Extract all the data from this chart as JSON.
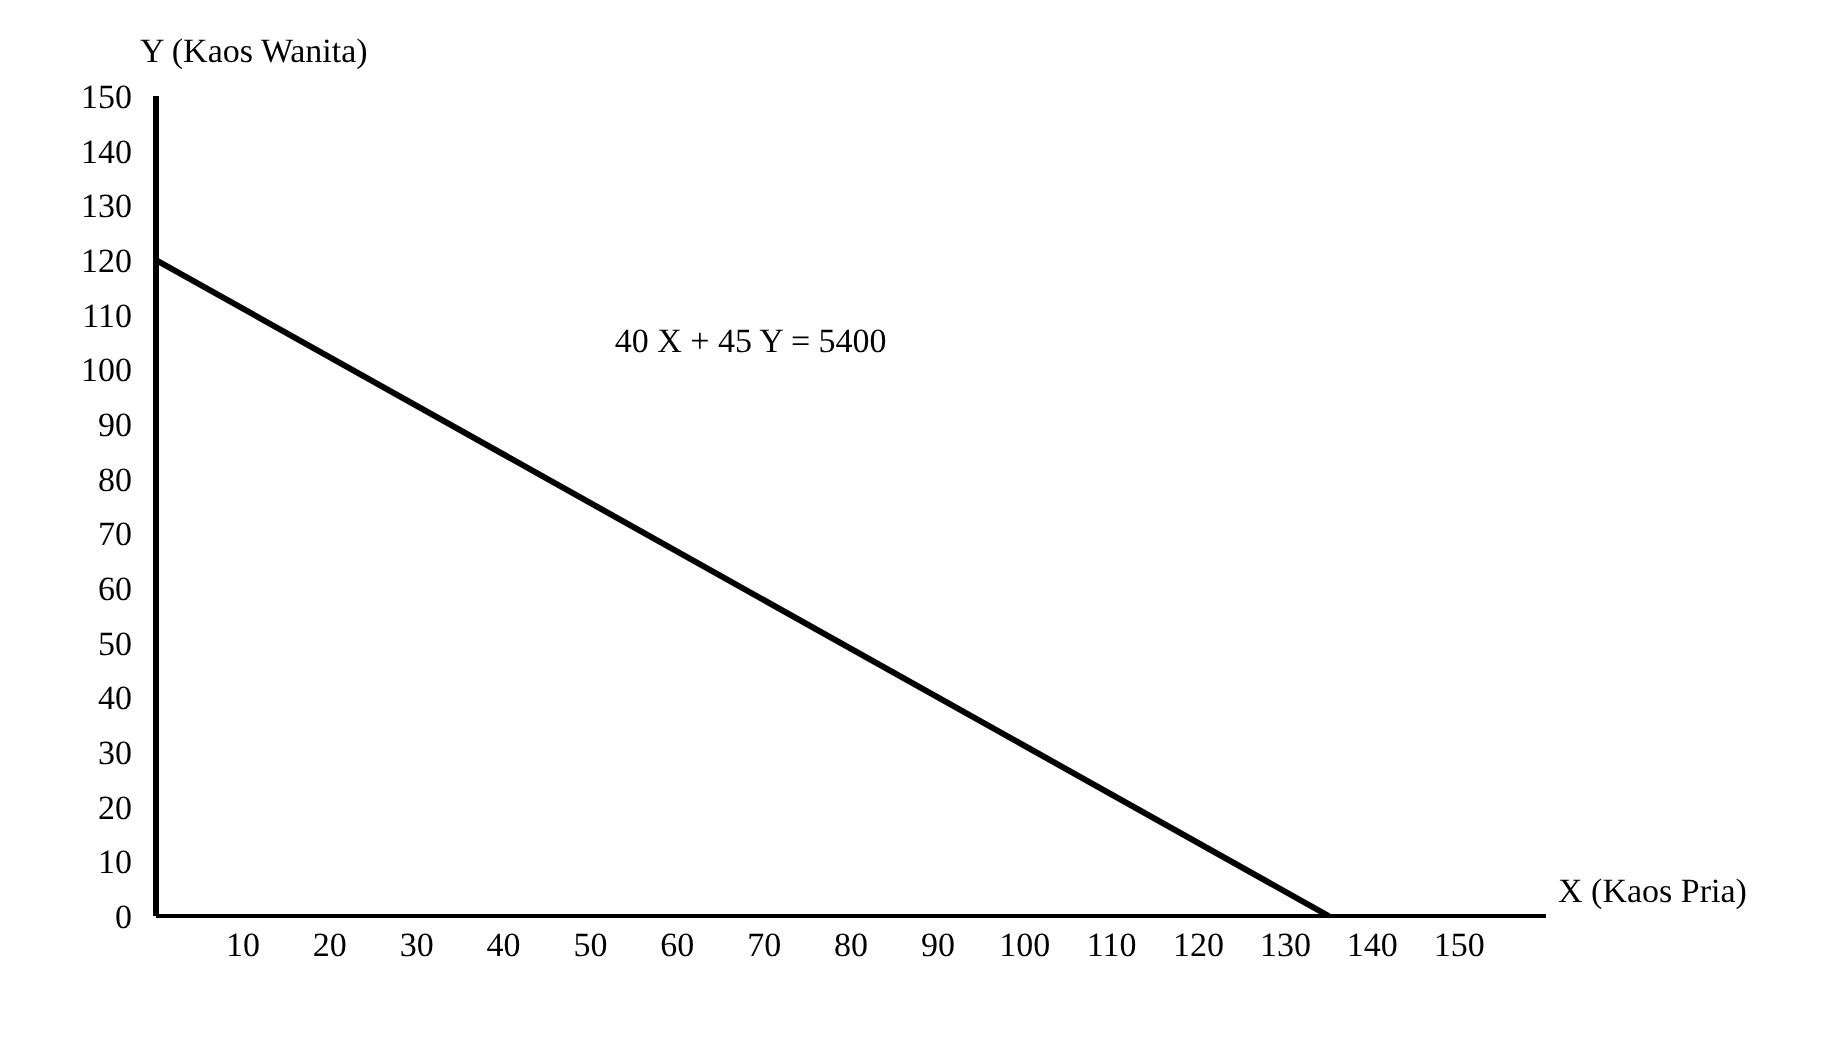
{
  "chart_data": {
    "type": "line",
    "xlabel": "X (Kaos Pria)",
    "ylabel": "Y (Kaos Wanita)",
    "x": [
      0,
      135
    ],
    "series": [
      {
        "color": "#000000",
        "values": [
          120,
          0
        ]
      }
    ],
    "xlim": [
      0,
      160
    ],
    "ylim": [
      0,
      150
    ],
    "xticks": [
      10,
      20,
      30,
      40,
      50,
      60,
      70,
      80,
      90,
      100,
      110,
      120,
      130,
      140,
      150
    ],
    "yticks": [
      0,
      10,
      20,
      30,
      40,
      50,
      60,
      70,
      80,
      90,
      100,
      110,
      120,
      130,
      140,
      150
    ],
    "annotations": [
      "40 X + 45 Y = 5400"
    ],
    "grid": false,
    "marker": "none",
    "line_style": "solid"
  }
}
